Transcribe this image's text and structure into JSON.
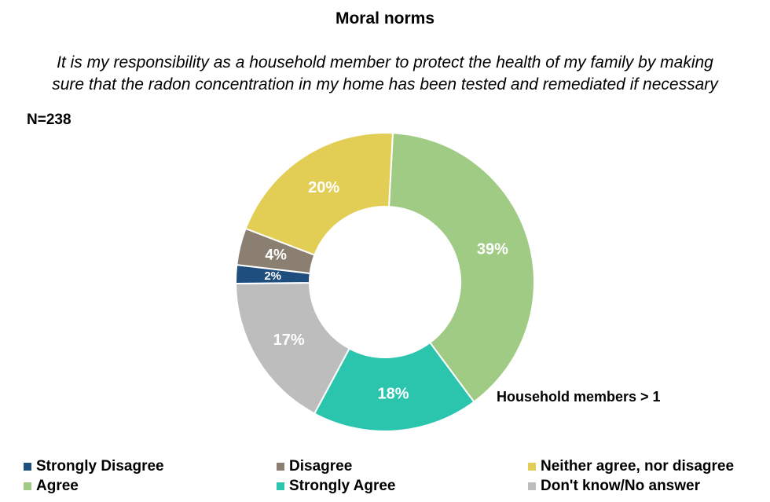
{
  "chart_data": {
    "type": "pie",
    "title": "Moral norms",
    "subtitle": "It is my responsibility as a household member to protect the health of my family by making sure that the radon concentration in my home has been tested and remediated if necessary",
    "sample_size": "N=238",
    "annotation": "Household members > 1",
    "categories": [
      "Strongly Disagree",
      "Disagree",
      "Neither agree, nor disagree",
      "Agree",
      "Strongly Agree",
      "Don't know/No answer"
    ],
    "values": [
      2,
      4,
      20,
      39,
      18,
      17
    ],
    "labels": [
      "2%",
      "4%",
      "20%",
      "39%",
      "18%",
      "17%"
    ],
    "colors": [
      "#1d4e7e",
      "#8a7f71",
      "#e2cd55",
      "#a0cb85",
      "#2bc5ad",
      "#bdbdbd"
    ],
    "legend_position": "bottom"
  }
}
